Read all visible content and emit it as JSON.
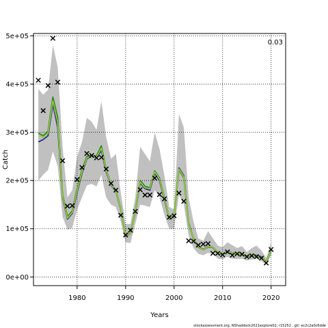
{
  "chart_data": {
    "type": "line",
    "xlabel": "Years",
    "ylabel": "Catch",
    "annotation": "0.03",
    "footer": "stockassessment.org, NShaddock2021explore02, r15252 , git: ec2c2a0c6dde",
    "xlim": [
      1971,
      2023
    ],
    "ylim": [
      -18000,
      505000
    ],
    "x_ticks": [
      1980,
      1990,
      2000,
      2010,
      2020
    ],
    "y_ticks": [
      0,
      100000,
      200000,
      300000,
      400000,
      500000
    ],
    "y_tick_labels": [
      "0e+00",
      "1e+05",
      "2e+05",
      "3e+05",
      "4e+05",
      "5e+05"
    ],
    "grid": true,
    "colors": {
      "band": "#c0c0c0",
      "series_a": "#3b3b8f",
      "series_b": "#2e8b2e",
      "series_c": "#9acd32",
      "observed": "#000000"
    },
    "years": [
      1972,
      1973,
      1974,
      1975,
      1976,
      1977,
      1978,
      1979,
      1980,
      1981,
      1982,
      1983,
      1984,
      1985,
      1986,
      1987,
      1988,
      1989,
      1990,
      1991,
      1992,
      1993,
      1994,
      1995,
      1996,
      1997,
      1998,
      1999,
      2000,
      2001,
      2002,
      2003,
      2004,
      2005,
      2006,
      2007,
      2008,
      2009,
      2010,
      2011,
      2012,
      2013,
      2014,
      2015,
      2016,
      2017,
      2018,
      2019,
      2020
    ],
    "upper": [
      390000,
      378000,
      388000,
      480000,
      435000,
      270000,
      165000,
      180000,
      250000,
      280000,
      330000,
      322000,
      305000,
      365000,
      290000,
      245000,
      255000,
      175000,
      110000,
      110000,
      165000,
      270000,
      255000,
      240000,
      300000,
      265000,
      210000,
      145000,
      140000,
      338000,
      310000,
      165000,
      115000,
      80000,
      75000,
      95000,
      80000,
      65000,
      62000,
      72000,
      66000,
      60000,
      64000,
      52000,
      60000,
      65000,
      55000,
      40000,
      70000
    ],
    "lower": [
      200000,
      212000,
      222000,
      260000,
      230000,
      125000,
      98000,
      102000,
      140000,
      165000,
      190000,
      193000,
      188000,
      212000,
      165000,
      150000,
      145000,
      115000,
      72000,
      70000,
      110000,
      150000,
      148000,
      145000,
      180000,
      165000,
      128000,
      100000,
      100000,
      170000,
      150000,
      85000,
      60000,
      48000,
      45000,
      50000,
      48000,
      38000,
      37000,
      42000,
      38000,
      37000,
      38000,
      34000,
      36000,
      38000,
      33000,
      25000,
      45000
    ],
    "series": [
      {
        "values": [
          280000,
          285000,
          293000,
          358000,
          310000,
          165000,
          120000,
          132000,
          175000,
          215000,
          245000,
          250000,
          248000,
          262000,
          218000,
          190000,
          178000,
          140000,
          85000,
          90000,
          135000,
          195000,
          183000,
          180000,
          215000,
          200000,
          160000,
          120000,
          125000,
          226000,
          210000,
          112000,
          80000,
          63000,
          57000,
          63000,
          62000,
          50000,
          48000,
          53000,
          50000,
          48000,
          49000,
          43000,
          46000,
          45000,
          42000,
          32000,
          55000
        ]
      },
      {
        "values": [
          298000,
          293000,
          302000,
          373000,
          330000,
          170000,
          125000,
          137000,
          183000,
          222000,
          250000,
          252000,
          251000,
          272000,
          222000,
          192000,
          180000,
          142000,
          86000,
          91000,
          137000,
          200000,
          188000,
          185000,
          220000,
          205000,
          164000,
          122000,
          127000,
          222000,
          206000,
          110000,
          79000,
          62000,
          56000,
          62000,
          61000,
          49000,
          47000,
          52000,
          49000,
          47000,
          48000,
          42000,
          45000,
          43000,
          40000,
          31000,
          53000
        ]
      },
      {
        "values": [
          293000,
          290000,
          298000,
          365000,
          320000,
          167000,
          122000,
          134000,
          179000,
          218000,
          247000,
          250000,
          249000,
          267000,
          220000,
          191000,
          179000,
          141000,
          86000,
          90000,
          136000,
          197000,
          185000,
          183000,
          218000,
          203000,
          162000,
          121000,
          126000,
          224000,
          208000,
          111000,
          80000,
          63000,
          56000,
          63000,
          62000,
          50000,
          48000,
          52000,
          50000,
          48000,
          49000,
          43000,
          46000,
          44000,
          41000,
          32000,
          54000
        ]
      }
    ],
    "observed": [
      {
        "x": 1972,
        "y": 408000
      },
      {
        "x": 1973,
        "y": 345000
      },
      {
        "x": 1974,
        "y": 397000
      },
      {
        "x": 1975,
        "y": 495000
      },
      {
        "x": 1976,
        "y": 404000
      },
      {
        "x": 1977,
        "y": 241000
      },
      {
        "x": 1978,
        "y": 147000
      },
      {
        "x": 1979,
        "y": 148000
      },
      {
        "x": 1980,
        "y": 202000
      },
      {
        "x": 1981,
        "y": 227000
      },
      {
        "x": 1982,
        "y": 256000
      },
      {
        "x": 1983,
        "y": 252000
      },
      {
        "x": 1984,
        "y": 247000
      },
      {
        "x": 1985,
        "y": 248000
      },
      {
        "x": 1986,
        "y": 224000
      },
      {
        "x": 1987,
        "y": 194000
      },
      {
        "x": 1988,
        "y": 180000
      },
      {
        "x": 1989,
        "y": 128000
      },
      {
        "x": 1990,
        "y": 87000
      },
      {
        "x": 1991,
        "y": 97000
      },
      {
        "x": 1992,
        "y": 136000
      },
      {
        "x": 1993,
        "y": 181000
      },
      {
        "x": 1994,
        "y": 170000
      },
      {
        "x": 1995,
        "y": 170000
      },
      {
        "x": 1996,
        "y": 205000
      },
      {
        "x": 1997,
        "y": 171000
      },
      {
        "x": 1998,
        "y": 162000
      },
      {
        "x": 1999,
        "y": 124000
      },
      {
        "x": 2000,
        "y": 127000
      },
      {
        "x": 2001,
        "y": 174000
      },
      {
        "x": 2002,
        "y": 157000
      },
      {
        "x": 2003,
        "y": 75000
      },
      {
        "x": 2004,
        "y": 74000
      },
      {
        "x": 2005,
        "y": 66000
      },
      {
        "x": 2006,
        "y": 68000
      },
      {
        "x": 2007,
        "y": 69000
      },
      {
        "x": 2008,
        "y": 49000
      },
      {
        "x": 2009,
        "y": 49000
      },
      {
        "x": 2010,
        "y": 46000
      },
      {
        "x": 2011,
        "y": 52000
      },
      {
        "x": 2012,
        "y": 45000
      },
      {
        "x": 2013,
        "y": 48000
      },
      {
        "x": 2014,
        "y": 47000
      },
      {
        "x": 2015,
        "y": 42000
      },
      {
        "x": 2016,
        "y": 44000
      },
      {
        "x": 2017,
        "y": 42000
      },
      {
        "x": 2018,
        "y": 39000
      },
      {
        "x": 2019,
        "y": 29000
      },
      {
        "x": 2020,
        "y": 57000
      }
    ]
  }
}
